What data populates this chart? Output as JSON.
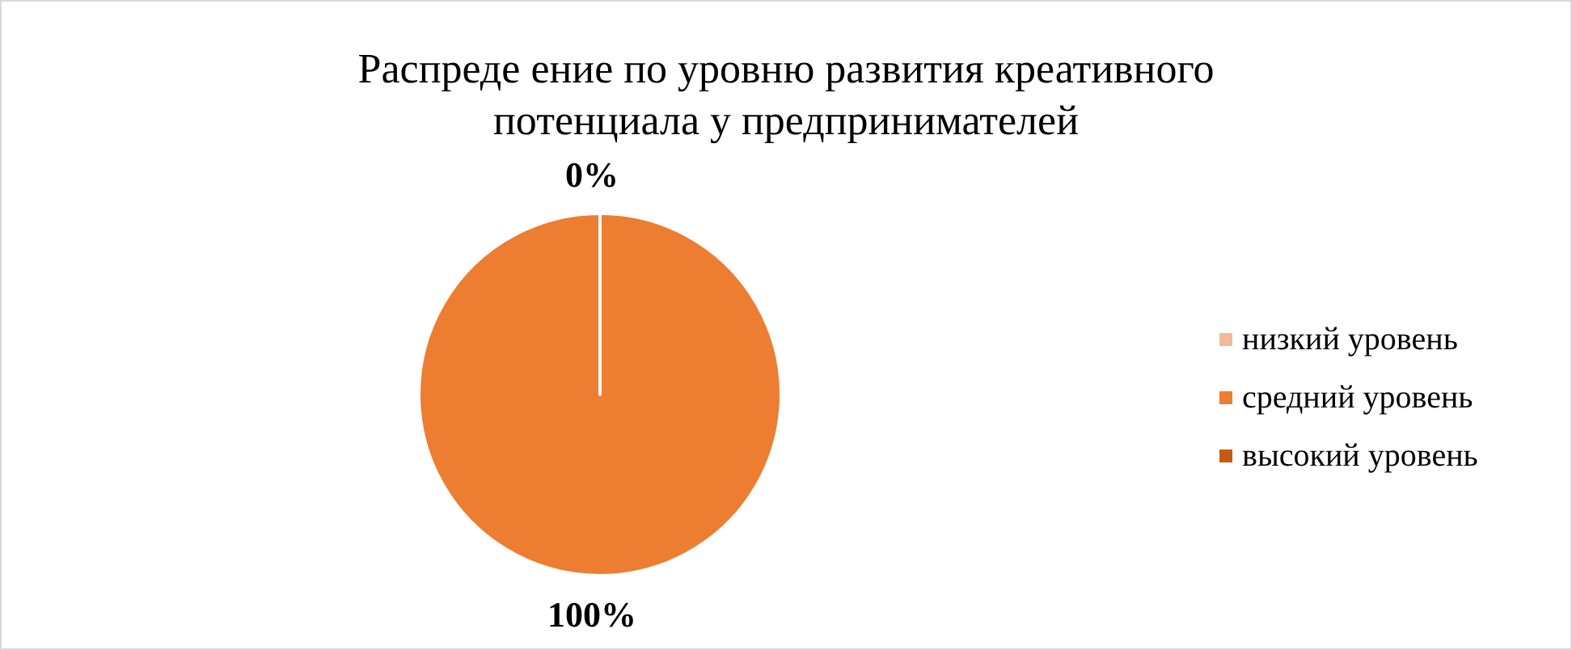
{
  "chart_data": {
    "type": "pie",
    "title": "Распреде ение по уровню развития креативного потенциала у предпринимателей",
    "categories": [
      "низкий уровень",
      "средний уровень",
      "высокий уровень"
    ],
    "values": [
      0,
      100,
      0
    ],
    "colors": [
      "#f4b89a",
      "#ed7d31",
      "#c55a11"
    ],
    "value_labels": [
      "0%",
      "100%",
      null
    ],
    "legend": "right"
  }
}
